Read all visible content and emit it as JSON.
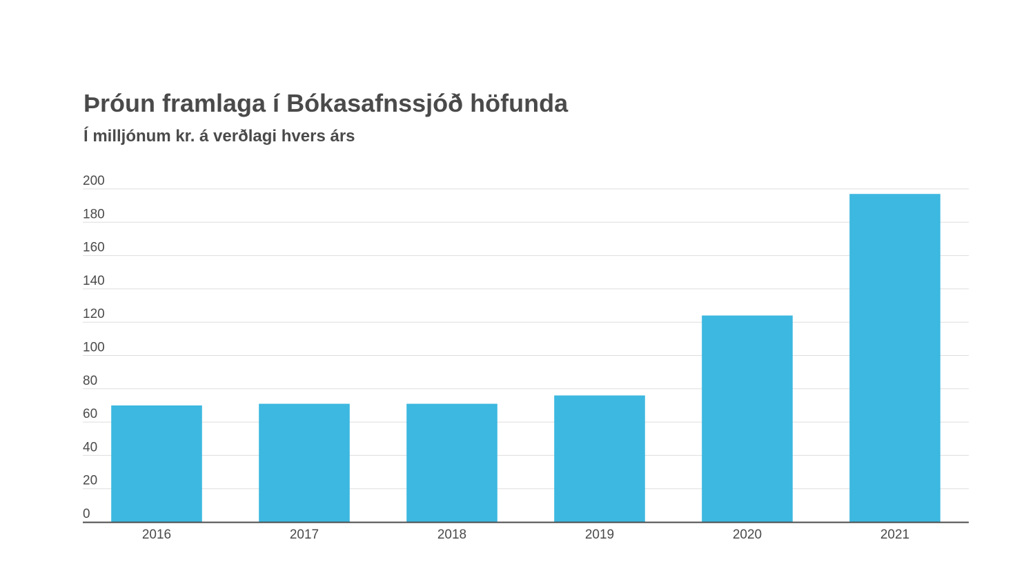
{
  "chart_data": {
    "type": "bar",
    "title": "Þróun framlaga í Bókasafnssjóð höfunda",
    "subtitle": "Í milljónum kr. á verðlagi hvers árs",
    "xlabel": "",
    "ylabel": "",
    "categories": [
      "2016",
      "2017",
      "2018",
      "2019",
      "2020",
      "2021"
    ],
    "values": [
      70,
      71,
      71,
      76,
      124,
      197
    ],
    "ylim": [
      0,
      200
    ],
    "yticks": [
      0,
      20,
      40,
      60,
      80,
      100,
      120,
      140,
      160,
      180,
      200
    ],
    "grid": true,
    "legend": "none",
    "bar_color": "#3db8e0",
    "grid_color": "#dddddd",
    "axis_color": "#4a4a4a"
  }
}
